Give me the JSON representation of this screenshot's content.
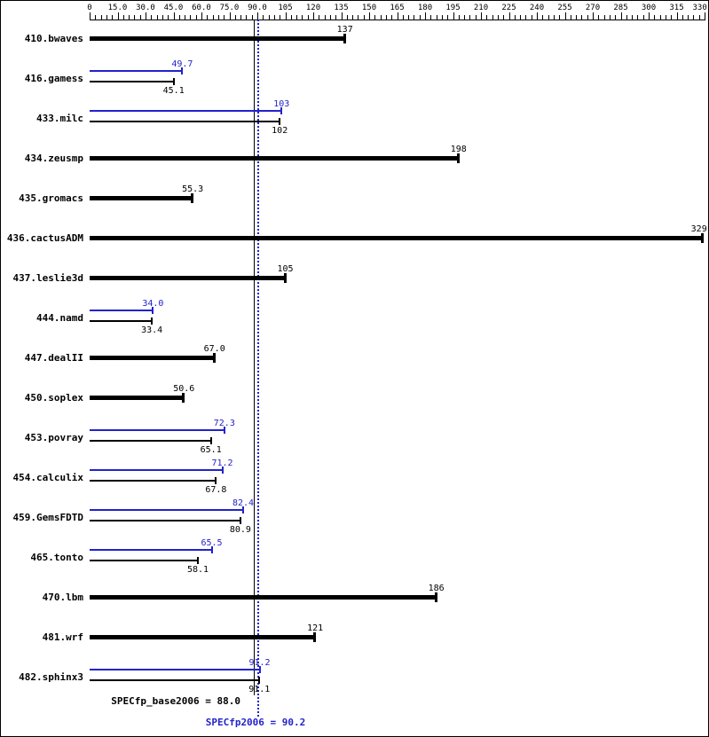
{
  "chart_data": {
    "type": "bar",
    "orientation": "horizontal",
    "axis": {
      "min": 0,
      "max": 330,
      "minor_tick_step": 3,
      "major_tick_step": 15,
      "position": "top",
      "tick_labels": [
        "0",
        "15.0",
        "30.0",
        "45.0",
        "60.0",
        "75.0",
        "90.0",
        "105",
        "120",
        "135",
        "150",
        "165",
        "180",
        "195",
        "210",
        "225",
        "240",
        "255",
        "270",
        "285",
        "300",
        "315",
        "330"
      ]
    },
    "series_colors": {
      "base": "#000000",
      "peak": "#2222cc"
    },
    "benchmarks": [
      {
        "name": "410.bwaves",
        "base": 137,
        "base_label": "137"
      },
      {
        "name": "416.gamess",
        "base": 45.1,
        "base_label": "45.1",
        "peak": 49.7,
        "peak_label": "49.7"
      },
      {
        "name": "433.milc",
        "base": 102,
        "base_label": "102",
        "peak": 103,
        "peak_label": "103"
      },
      {
        "name": "434.zeusmp",
        "base": 198,
        "base_label": "198"
      },
      {
        "name": "435.gromacs",
        "base": 55.3,
        "base_label": "55.3"
      },
      {
        "name": "436.cactusADM",
        "base": 329,
        "base_label": "329"
      },
      {
        "name": "437.leslie3d",
        "base": 105,
        "base_label": "105"
      },
      {
        "name": "444.namd",
        "base": 33.4,
        "base_label": "33.4",
        "peak": 34.0,
        "peak_label": "34.0"
      },
      {
        "name": "447.dealII",
        "base": 67.0,
        "base_label": "67.0"
      },
      {
        "name": "450.soplex",
        "base": 50.6,
        "base_label": "50.6"
      },
      {
        "name": "453.povray",
        "base": 65.1,
        "base_label": "65.1",
        "peak": 72.3,
        "peak_label": "72.3"
      },
      {
        "name": "454.calculix",
        "base": 67.8,
        "base_label": "67.8",
        "peak": 71.2,
        "peak_label": "71.2"
      },
      {
        "name": "459.GemsFDTD",
        "base": 80.9,
        "base_label": "80.9",
        "peak": 82.4,
        "peak_label": "82.4"
      },
      {
        "name": "465.tonto",
        "base": 58.1,
        "base_label": "58.1",
        "peak": 65.5,
        "peak_label": "65.5"
      },
      {
        "name": "470.lbm",
        "base": 186,
        "base_label": "186"
      },
      {
        "name": "481.wrf",
        "base": 121,
        "base_label": "121"
      },
      {
        "name": "482.sphinx3",
        "base": 91.1,
        "base_label": "91.1",
        "peak": 91.2,
        "peak_label": "91.2"
      }
    ],
    "reference_lines": [
      {
        "id": "base",
        "value": 88.0,
        "style": "solid",
        "color": "#000000"
      },
      {
        "id": "peak",
        "value": 90.2,
        "style": "dotted",
        "color": "#2222cc"
      }
    ],
    "summary": {
      "base_label": "SPECfp_base2006 = 88.0",
      "peak_label": "SPECfp2006 = 90.2"
    }
  }
}
